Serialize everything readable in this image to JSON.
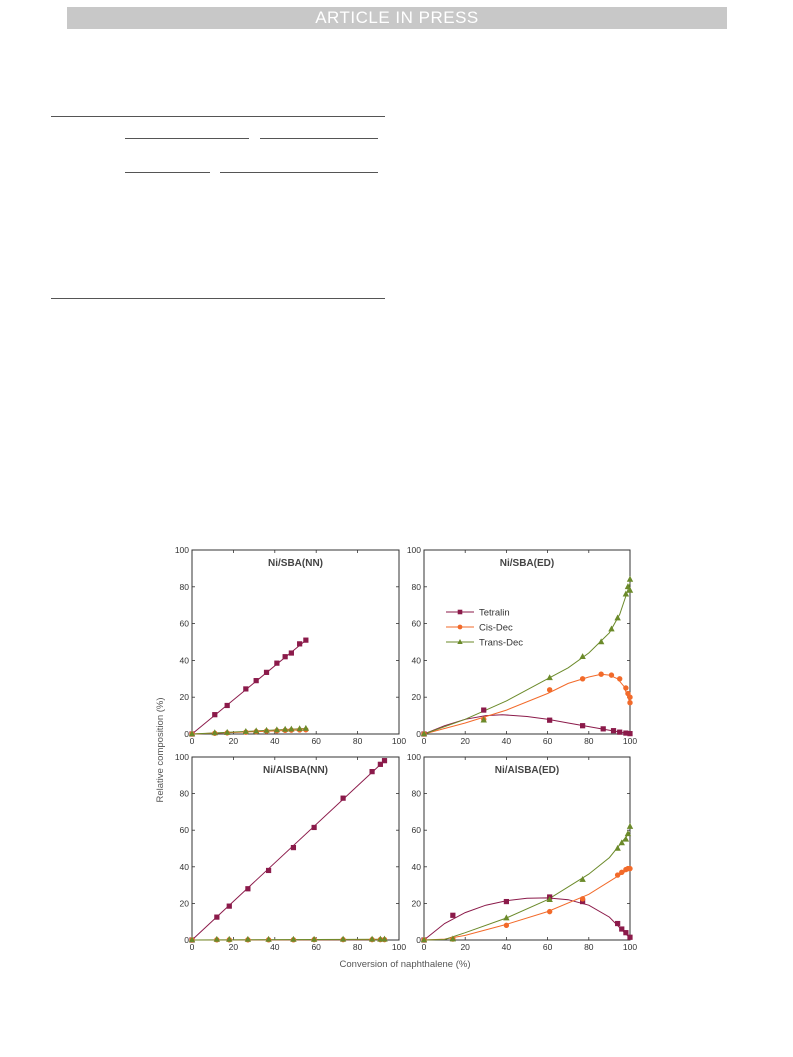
{
  "header": {
    "banner_text": "ARTICLE IN PRESS"
  },
  "colors": {
    "tetralin": "#8b1a4a",
    "cis_dec": "#f26a2a",
    "trans_dec": "#6b8a2a",
    "panel_title": "#444444"
  },
  "figure": {
    "y_axis_label": "Relative composition (%)",
    "x_axis_label": "Conversion of naphthalene (%)",
    "legend": {
      "panel": "Ni/SBA(ED)",
      "entries": [
        "Tetralin",
        "Cis-Dec",
        "Trans-Dec"
      ]
    }
  },
  "chart_data": [
    {
      "type": "scatter",
      "title": "Ni/SBA(NN)",
      "xlim": [
        0,
        100
      ],
      "ylim": [
        0,
        100
      ],
      "xticks": [
        0,
        20,
        40,
        60,
        80,
        100
      ],
      "yticks": [
        0,
        20,
        40,
        60,
        80,
        100
      ],
      "series": [
        {
          "name": "Tetralin",
          "marker": "square",
          "points": [
            [
              0,
              0
            ],
            [
              11,
              10.5
            ],
            [
              17,
              15.5
            ],
            [
              26,
              24.5
            ],
            [
              31,
              29
            ],
            [
              36,
              33.5
            ],
            [
              41,
              38.5
            ],
            [
              45,
              42
            ],
            [
              48,
              44
            ],
            [
              52,
              49
            ],
            [
              55,
              51
            ]
          ],
          "curve": [
            [
              0,
              0
            ],
            [
              55,
              51
            ]
          ]
        },
        {
          "name": "Cis-Dec",
          "marker": "circle",
          "points": [
            [
              0,
              0
            ],
            [
              11,
              0.4
            ],
            [
              17,
              0.6
            ],
            [
              26,
              1
            ],
            [
              31,
              1.3
            ],
            [
              36,
              1.6
            ],
            [
              41,
              1.8
            ],
            [
              45,
              2
            ],
            [
              48,
              2.1
            ],
            [
              52,
              2.2
            ],
            [
              55,
              2.3
            ]
          ],
          "curve": [
            [
              0,
              0
            ],
            [
              55,
              2.3
            ]
          ]
        },
        {
          "name": "Trans-Dec",
          "marker": "triangle",
          "points": [
            [
              0,
              0
            ],
            [
              11,
              0.6
            ],
            [
              17,
              0.8
            ],
            [
              26,
              1.3
            ],
            [
              31,
              1.6
            ],
            [
              36,
              1.9
            ],
            [
              41,
              2.2
            ],
            [
              45,
              2.5
            ],
            [
              48,
              2.6
            ],
            [
              52,
              2.8
            ],
            [
              55,
              3
            ]
          ],
          "curve": [
            [
              0,
              0
            ],
            [
              55,
              3
            ]
          ]
        }
      ]
    },
    {
      "type": "scatter",
      "title": "Ni/SBA(ED)",
      "xlim": [
        0,
        100
      ],
      "ylim": [
        0,
        100
      ],
      "xticks": [
        0,
        20,
        40,
        60,
        80,
        100
      ],
      "yticks": [
        0,
        20,
        40,
        60,
        80,
        100
      ],
      "series": [
        {
          "name": "Tetralin",
          "marker": "square",
          "points": [
            [
              0,
              0
            ],
            [
              29,
              13
            ],
            [
              61,
              7.5
            ],
            [
              77,
              4.5
            ],
            [
              87,
              2.8
            ],
            [
              92,
              1.8
            ],
            [
              95,
              1
            ],
            [
              98,
              0.5
            ],
            [
              100,
              0.2
            ]
          ],
          "curve": [
            [
              0,
              0
            ],
            [
              10,
              4.5
            ],
            [
              20,
              8
            ],
            [
              30,
              10
            ],
            [
              38,
              10.5
            ],
            [
              50,
              9.5
            ],
            [
              60,
              8
            ],
            [
              70,
              6
            ],
            [
              80,
              4
            ],
            [
              90,
              2
            ],
            [
              100,
              0.2
            ]
          ]
        },
        {
          "name": "Cis-Dec",
          "marker": "circle",
          "points": [
            [
              0,
              0
            ],
            [
              29,
              8
            ],
            [
              61,
              24
            ],
            [
              77,
              30
            ],
            [
              86,
              32.5
            ],
            [
              91,
              32
            ],
            [
              95,
              30
            ],
            [
              98,
              25
            ],
            [
              99,
              22
            ],
            [
              100,
              20
            ],
            [
              100,
              17
            ]
          ],
          "curve": [
            [
              0,
              0
            ],
            [
              20,
              6
            ],
            [
              40,
              13
            ],
            [
              60,
              22
            ],
            [
              70,
              27.5
            ],
            [
              80,
              31
            ],
            [
              86,
              32.5
            ],
            [
              90,
              32
            ],
            [
              94,
              30
            ],
            [
              97,
              26
            ],
            [
              100,
              17
            ]
          ]
        },
        {
          "name": "Trans-Dec",
          "marker": "triangle",
          "points": [
            [
              0,
              0
            ],
            [
              29,
              7.5
            ],
            [
              61,
              30.5
            ],
            [
              77,
              42
            ],
            [
              86,
              50
            ],
            [
              91,
              57
            ],
            [
              94,
              63
            ],
            [
              98,
              76
            ],
            [
              99,
              80
            ],
            [
              100,
              84
            ],
            [
              100,
              78
            ]
          ],
          "curve": [
            [
              0,
              0
            ],
            [
              20,
              8
            ],
            [
              40,
              18
            ],
            [
              60,
              30
            ],
            [
              70,
              36
            ],
            [
              80,
              44
            ],
            [
              90,
              55
            ],
            [
              95,
              65
            ],
            [
              98,
              75
            ],
            [
              100,
              82
            ]
          ]
        }
      ]
    },
    {
      "type": "scatter",
      "title": "Ni/AlSBA(NN)",
      "xlim": [
        0,
        100
      ],
      "ylim": [
        0,
        100
      ],
      "xticks": [
        0,
        20,
        40,
        60,
        80,
        100
      ],
      "yticks": [
        0,
        20,
        40,
        60,
        80,
        100
      ],
      "series": [
        {
          "name": "Tetralin",
          "marker": "square",
          "points": [
            [
              0,
              0
            ],
            [
              12,
              12.5
            ],
            [
              18,
              18.5
            ],
            [
              27,
              28
            ],
            [
              37,
              38
            ],
            [
              49,
              50.5
            ],
            [
              59,
              61.5
            ],
            [
              73,
              77.5
            ],
            [
              87,
              92
            ],
            [
              91,
              96
            ],
            [
              93,
              98
            ]
          ],
          "curve": [
            [
              0,
              0
            ],
            [
              93,
              98
            ]
          ]
        },
        {
          "name": "Cis-Dec",
          "marker": "circle",
          "points": [
            [
              0,
              0
            ],
            [
              12,
              0.1
            ],
            [
              18,
              0.1
            ],
            [
              27,
              0.1
            ],
            [
              37,
              0.1
            ],
            [
              49,
              0.1
            ],
            [
              59,
              0.2
            ],
            [
              73,
              0.2
            ],
            [
              87,
              0.2
            ],
            [
              91,
              0.2
            ],
            [
              93,
              0.2
            ]
          ],
          "curve": [
            [
              0,
              0
            ],
            [
              93,
              0.2
            ]
          ]
        },
        {
          "name": "Trans-Dec",
          "marker": "triangle",
          "points": [
            [
              0,
              0
            ],
            [
              12,
              0.3
            ],
            [
              18,
              0.3
            ],
            [
              27,
              0.3
            ],
            [
              37,
              0.3
            ],
            [
              49,
              0.3
            ],
            [
              59,
              0.3
            ],
            [
              73,
              0.4
            ],
            [
              87,
              0.4
            ],
            [
              91,
              0.4
            ],
            [
              93,
              0.4
            ]
          ],
          "curve": [
            [
              0,
              0
            ],
            [
              93,
              0.4
            ]
          ]
        }
      ]
    },
    {
      "type": "scatter",
      "title": "Ni/AlSBA(ED)",
      "xlim": [
        0,
        100
      ],
      "ylim": [
        0,
        100
      ],
      "xticks": [
        0,
        20,
        40,
        60,
        80,
        100
      ],
      "yticks": [
        0,
        20,
        40,
        60,
        80,
        100
      ],
      "series": [
        {
          "name": "Tetralin",
          "marker": "square",
          "points": [
            [
              0,
              0
            ],
            [
              14,
              13.5
            ],
            [
              40,
              21
            ],
            [
              61,
              23.5
            ],
            [
              77,
              21
            ],
            [
              94,
              9
            ],
            [
              96,
              6
            ],
            [
              98,
              4
            ],
            [
              100,
              1.5
            ]
          ],
          "curve": [
            [
              0,
              0
            ],
            [
              10,
              9
            ],
            [
              20,
              15
            ],
            [
              30,
              19
            ],
            [
              40,
              21.5
            ],
            [
              50,
              22.8
            ],
            [
              60,
              23
            ],
            [
              70,
              22
            ],
            [
              80,
              19
            ],
            [
              90,
              12.5
            ],
            [
              100,
              1
            ]
          ]
        },
        {
          "name": "Cis-Dec",
          "marker": "circle",
          "points": [
            [
              0,
              0
            ],
            [
              14,
              0.5
            ],
            [
              40,
              8
            ],
            [
              61,
              15.5
            ],
            [
              77,
              22.5
            ],
            [
              94,
              35.5
            ],
            [
              96,
              37
            ],
            [
              98,
              38.5
            ],
            [
              99,
              39
            ],
            [
              100,
              39
            ]
          ],
          "curve": [
            [
              0,
              0
            ],
            [
              10,
              0.5
            ],
            [
              20,
              2.5
            ],
            [
              40,
              8.5
            ],
            [
              60,
              15.5
            ],
            [
              80,
              25
            ],
            [
              90,
              32
            ],
            [
              100,
              39
            ]
          ]
        },
        {
          "name": "Trans-Dec",
          "marker": "triangle",
          "points": [
            [
              0,
              0
            ],
            [
              14,
              0.5
            ],
            [
              40,
              12
            ],
            [
              61,
              22
            ],
            [
              77,
              33
            ],
            [
              94,
              50
            ],
            [
              96,
              53
            ],
            [
              98,
              55
            ],
            [
              99,
              58
            ],
            [
              100,
              62
            ]
          ],
          "curve": [
            [
              0,
              0
            ],
            [
              10,
              0.3
            ],
            [
              20,
              4
            ],
            [
              40,
              12
            ],
            [
              60,
              22
            ],
            [
              80,
              36
            ],
            [
              90,
              45
            ],
            [
              100,
              59
            ]
          ]
        }
      ]
    }
  ]
}
